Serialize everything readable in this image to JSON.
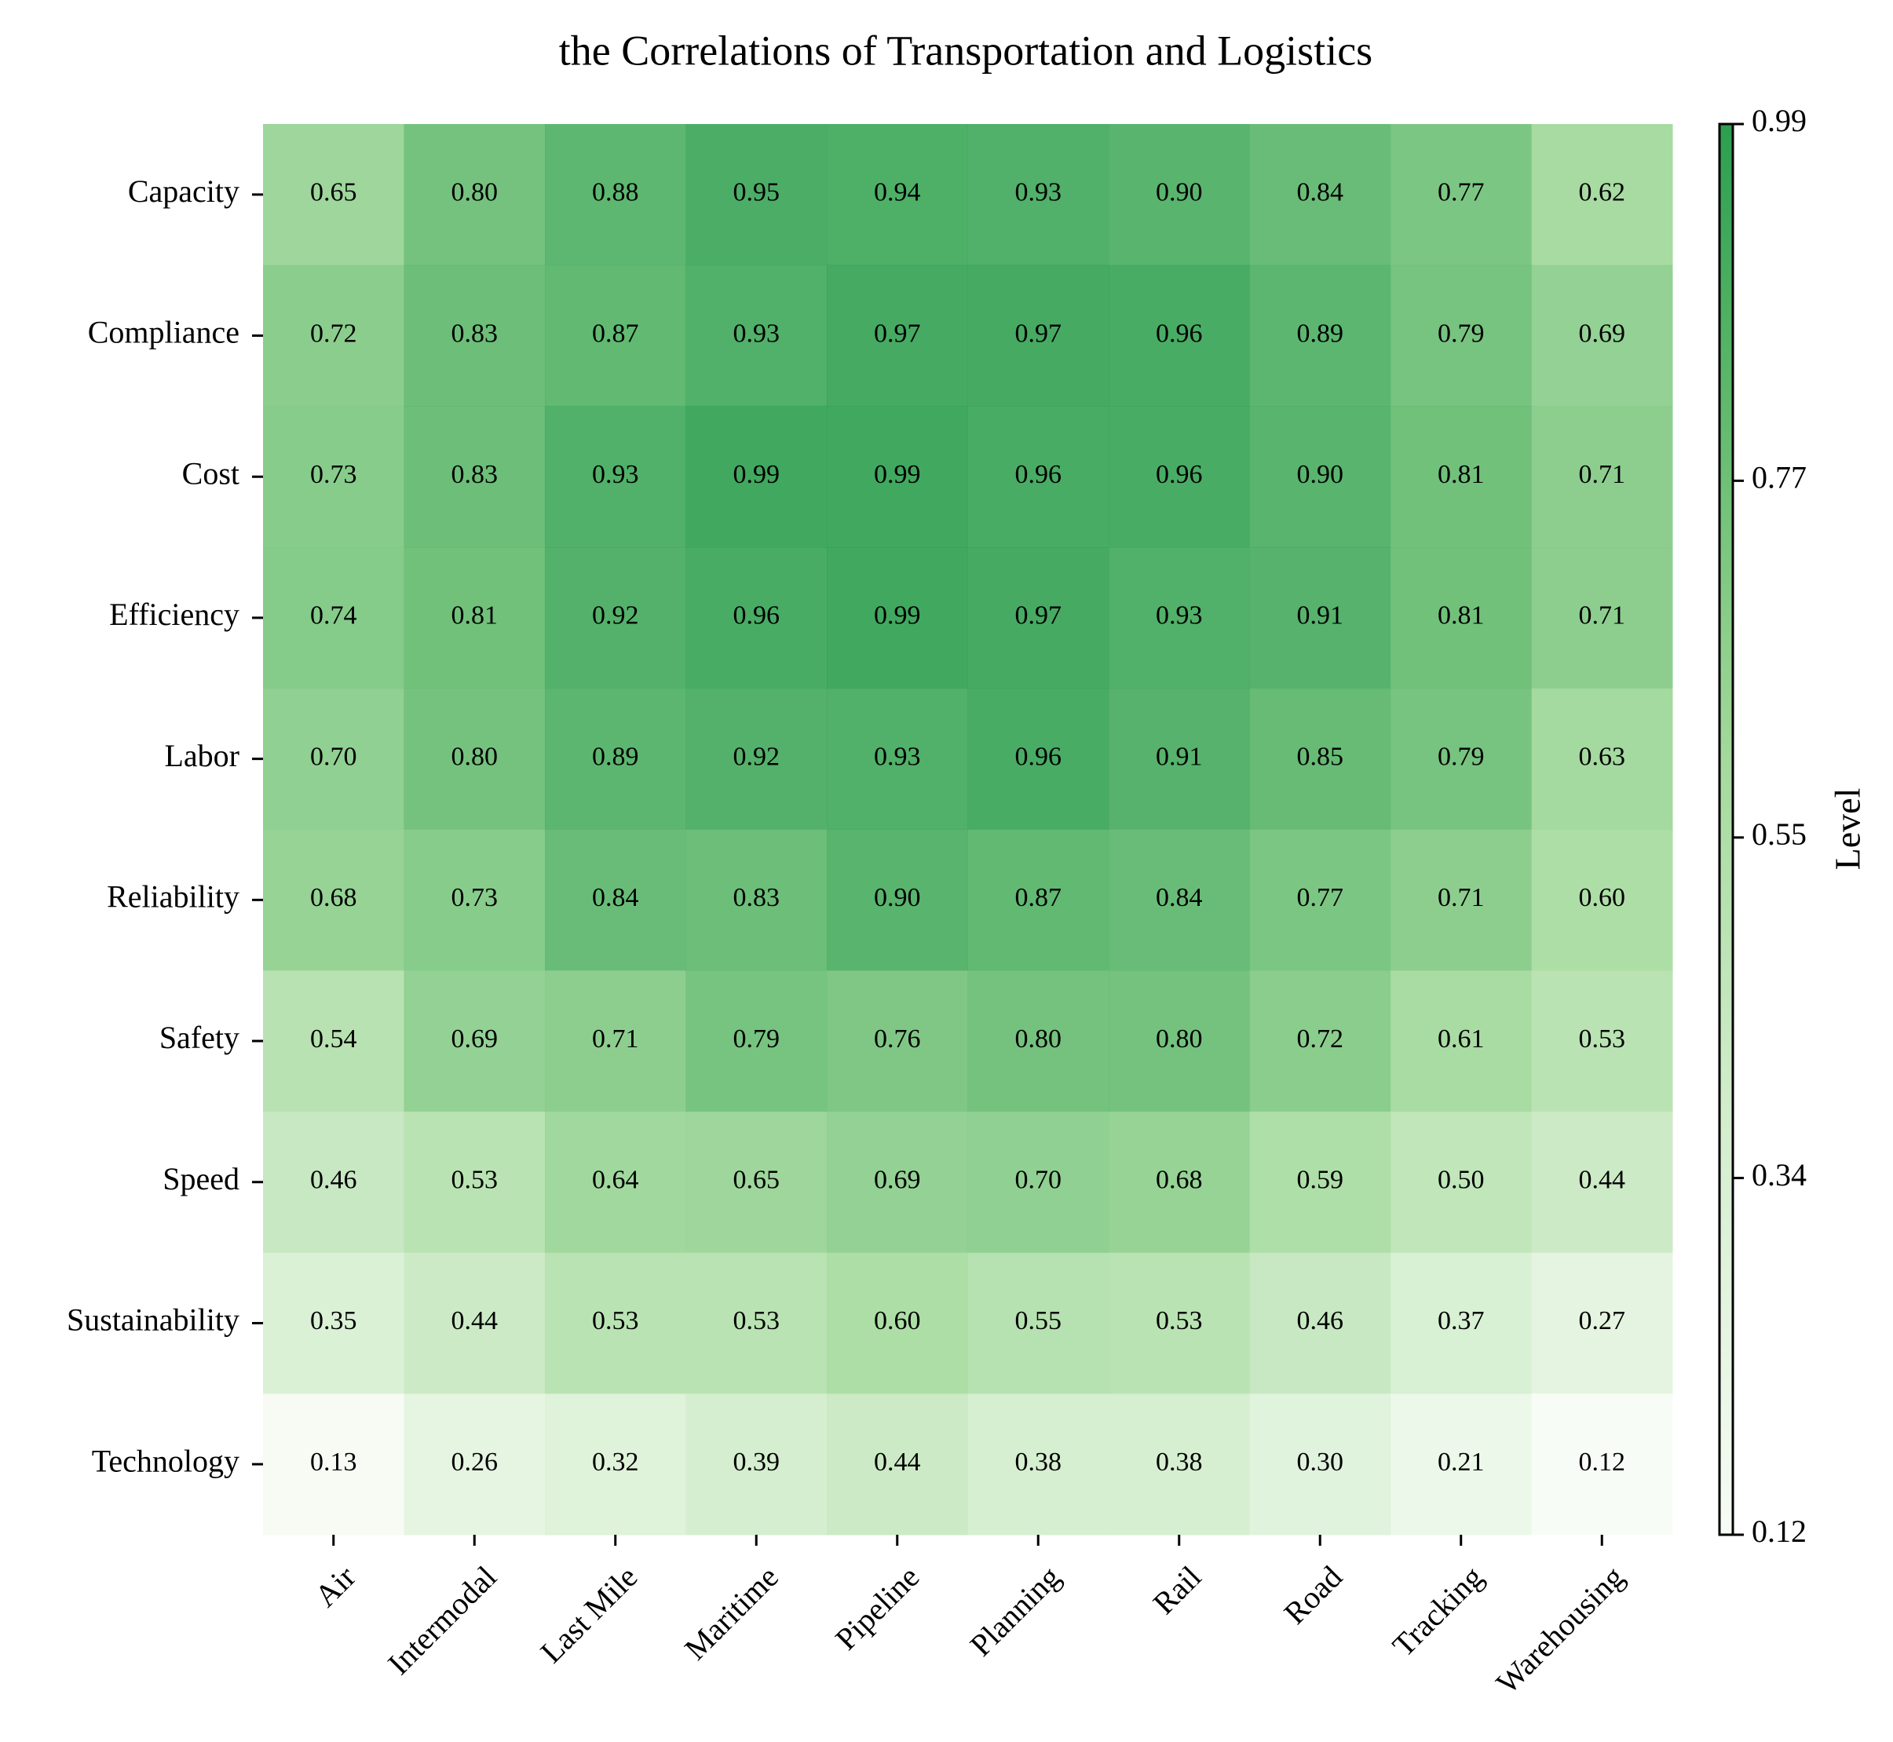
{
  "chart_data": {
    "type": "heatmap",
    "title": "the Correlations of Transportation and Logistics",
    "rows": [
      "Capacity",
      "Compliance",
      "Cost",
      "Efficiency",
      "Labor",
      "Reliability",
      "Safety",
      "Speed",
      "Sustainability",
      "Technology"
    ],
    "columns": [
      "Air",
      "Intermodal",
      "Last Mile",
      "Maritime",
      "Pipeline",
      "Planning",
      "Rail",
      "Road",
      "Tracking",
      "Warehousing"
    ],
    "values": [
      [
        0.65,
        0.8,
        0.88,
        0.95,
        0.94,
        0.93,
        0.9,
        0.84,
        0.77,
        0.62
      ],
      [
        0.72,
        0.83,
        0.87,
        0.93,
        0.97,
        0.97,
        0.96,
        0.89,
        0.79,
        0.69
      ],
      [
        0.73,
        0.83,
        0.93,
        0.99,
        0.99,
        0.96,
        0.96,
        0.9,
        0.81,
        0.71
      ],
      [
        0.74,
        0.81,
        0.92,
        0.96,
        0.99,
        0.97,
        0.93,
        0.91,
        0.81,
        0.71
      ],
      [
        0.7,
        0.8,
        0.89,
        0.92,
        0.93,
        0.96,
        0.91,
        0.85,
        0.79,
        0.63
      ],
      [
        0.68,
        0.73,
        0.84,
        0.83,
        0.9,
        0.87,
        0.84,
        0.77,
        0.71,
        0.6
      ],
      [
        0.54,
        0.69,
        0.71,
        0.79,
        0.76,
        0.8,
        0.8,
        0.72,
        0.61,
        0.53
      ],
      [
        0.46,
        0.53,
        0.64,
        0.65,
        0.69,
        0.7,
        0.68,
        0.59,
        0.5,
        0.44
      ],
      [
        0.35,
        0.44,
        0.53,
        0.53,
        0.6,
        0.55,
        0.53,
        0.46,
        0.37,
        0.27
      ],
      [
        0.13,
        0.26,
        0.32,
        0.39,
        0.44,
        0.38,
        0.38,
        0.3,
        0.21,
        0.12
      ]
    ],
    "value_format": "2 decimals",
    "colorbar": {
      "label": "Level",
      "min": 0.12,
      "max": 0.99,
      "ticks": [
        "0.12",
        "0.34",
        "0.55",
        "0.77",
        "0.99"
      ],
      "color_low": "#f7fcf5",
      "color_high": "#2c9e4f"
    },
    "grid": false
  }
}
